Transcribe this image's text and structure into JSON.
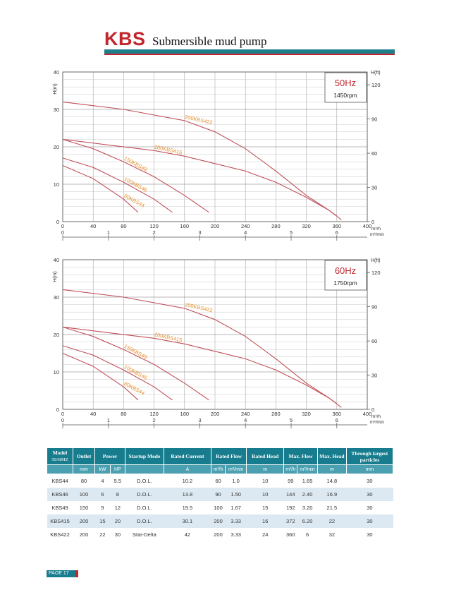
{
  "header": {
    "brand": "KBS",
    "subtitle": "Submersible mud pump"
  },
  "charts": [
    {
      "id": "50hz",
      "freq": "50Hz",
      "rpm": "1450rpm",
      "y_label": "H(m)",
      "y_ticks": [
        "40",
        "30",
        "20",
        "10",
        "0"
      ],
      "x_ticks": [
        "0",
        "40",
        "80",
        "120",
        "160",
        "200",
        "240",
        "280",
        "320",
        "360",
        "400"
      ],
      "rt_label": "H(ft)",
      "rt_ticks": [
        "120",
        "90",
        "60",
        "30",
        "0"
      ],
      "unit_m3h": "m³/h",
      "unit_m3min": "m³/min",
      "min_ticks": [
        "0",
        "1",
        "2",
        "3",
        "4",
        "5",
        "6"
      ],
      "curves": [
        {
          "name": "200KBS422",
          "x": [
            0,
            80,
            160,
            200,
            240,
            280,
            320,
            350,
            360
          ],
          "y": [
            32,
            30,
            27,
            24,
            19.5,
            13.5,
            7,
            3,
            1.5
          ]
        },
        {
          "name": "200KBS415",
          "x": [
            0,
            60,
            120,
            160,
            200,
            240,
            280,
            320,
            350,
            366
          ],
          "y": [
            22,
            20.5,
            19,
            17.5,
            15.5,
            13.5,
            10.5,
            6.5,
            3,
            0.5
          ]
        },
        {
          "name": "150KBS49",
          "x": [
            0,
            40,
            80,
            120,
            160,
            192
          ],
          "y": [
            22,
            19.5,
            16,
            12,
            7,
            2.5
          ]
        },
        {
          "name": "100KBS46",
          "x": [
            0,
            40,
            80,
            120,
            144
          ],
          "y": [
            17,
            14.5,
            10.5,
            6,
            2.5
          ]
        },
        {
          "name": "80KBS44",
          "x": [
            0,
            40,
            80,
            99
          ],
          "y": [
            15,
            11.5,
            6,
            2.5
          ]
        }
      ]
    },
    {
      "id": "60hz",
      "freq": "60Hz",
      "rpm": "1750rpm",
      "y_label": "H(m)",
      "y_ticks": [
        "40",
        "30",
        "20",
        "10",
        "0"
      ],
      "x_ticks": [
        "0",
        "40",
        "80",
        "120",
        "160",
        "200",
        "240",
        "280",
        "320",
        "360",
        "400"
      ],
      "rt_label": "H(ft)",
      "rt_ticks": [
        "120",
        "90",
        "60",
        "30",
        "0"
      ],
      "unit_m3h": "m³/h",
      "unit_m3min": "m³/min",
      "min_ticks": [
        "0",
        "1",
        "2",
        "3",
        "4",
        "5",
        "6"
      ],
      "curves": [
        {
          "name": "200KBS422",
          "x": [
            0,
            80,
            160,
            200,
            240,
            280,
            320,
            350,
            360
          ],
          "y": [
            32,
            30,
            27,
            24,
            19.5,
            13.5,
            7,
            3,
            1.5
          ]
        },
        {
          "name": "200KBS415",
          "x": [
            0,
            60,
            120,
            160,
            200,
            240,
            280,
            320,
            350,
            366
          ],
          "y": [
            22,
            20.5,
            19,
            17.5,
            15.5,
            13.5,
            10.5,
            6.5,
            3,
            0.5
          ]
        },
        {
          "name": "150KBS49",
          "x": [
            0,
            40,
            80,
            120,
            160,
            192
          ],
          "y": [
            22,
            19.5,
            16,
            12,
            7,
            2.5
          ]
        },
        {
          "name": "100KBS46",
          "x": [
            0,
            40,
            80,
            120,
            144
          ],
          "y": [
            17,
            14.5,
            10.5,
            6,
            2.5
          ]
        },
        {
          "name": "80KBS44",
          "x": [
            0,
            40,
            80,
            99
          ],
          "y": [
            15,
            11.5,
            6,
            2.5
          ]
        }
      ]
    }
  ],
  "table": {
    "headers": {
      "model": "Model",
      "model_sub": "50/60HZ",
      "outlet": "Outlet",
      "power": "Power",
      "startup": "Startup Mode",
      "rated_current": "Rated Current",
      "rated_flow": "Rated Flow",
      "rated_head": "Rated Head",
      "max_flow": "Max. Flow",
      "max_head": "Max. Head",
      "particles": "Through largest particles"
    },
    "units": {
      "outlet": "mm",
      "kw": "kW",
      "hp": "HP",
      "current": "A",
      "flow_h": "m³/h",
      "flow_min": "m³/min",
      "head": "m",
      "mflow_h": "m³/h",
      "mflow_min": "m³/min",
      "mhead": "m",
      "particles": "mm"
    },
    "rows": [
      {
        "model": "KBS44",
        "outlet": "80",
        "kw": "4",
        "hp": "5.5",
        "startup": "D.O.L.",
        "current": "10.2",
        "flow_h": "60",
        "flow_min": "1.0",
        "head": "10",
        "mflow_h": "99",
        "mflow_min": "1.65",
        "mhead": "14.8",
        "particles": "30"
      },
      {
        "model": "KBS46",
        "outlet": "100",
        "kw": "6",
        "hp": "8",
        "startup": "D.O.L.",
        "current": "13.8",
        "flow_h": "90",
        "flow_min": "1.50",
        "head": "10",
        "mflow_h": "144",
        "mflow_min": "2.40",
        "mhead": "16.9",
        "particles": "30"
      },
      {
        "model": "KBS49",
        "outlet": "150",
        "kw": "9",
        "hp": "12",
        "startup": "D.O.L.",
        "current": "19.5",
        "flow_h": "100",
        "flow_min": "1.67",
        "head": "15",
        "mflow_h": "192",
        "mflow_min": "3.20",
        "mhead": "21.5",
        "particles": "30"
      },
      {
        "model": "KBS415",
        "outlet": "200",
        "kw": "15",
        "hp": "20",
        "startup": "D.O.L.",
        "current": "30.1",
        "flow_h": "200",
        "flow_min": "3.33",
        "head": "16",
        "mflow_h": "372",
        "mflow_min": "6.20",
        "mhead": "22",
        "particles": "30"
      },
      {
        "model": "KBS422",
        "outlet": "200",
        "kw": "22",
        "hp": "30",
        "startup": "Star-Delta",
        "current": "42",
        "flow_h": "200",
        "flow_min": "3.33",
        "head": "24",
        "mflow_h": "360",
        "mflow_min": "6",
        "mhead": "32",
        "particles": "30"
      }
    ]
  },
  "footer": {
    "page": "PAGE 17"
  },
  "chart_data": [
    {
      "type": "line",
      "title": "50Hz 1450rpm",
      "xlabel": "m³/h",
      "ylabel": "H(m)",
      "xlim": [
        0,
        400
      ],
      "ylim": [
        0,
        40
      ],
      "series": [
        {
          "name": "200KBS422",
          "x": [
            0,
            80,
            160,
            200,
            240,
            280,
            320,
            350,
            360
          ],
          "y": [
            32,
            30,
            27,
            24,
            19.5,
            13.5,
            7,
            3,
            1.5
          ]
        },
        {
          "name": "200KBS415",
          "x": [
            0,
            60,
            120,
            160,
            200,
            240,
            280,
            320,
            350,
            366
          ],
          "y": [
            22,
            20.5,
            19,
            17.5,
            15.5,
            13.5,
            10.5,
            6.5,
            3,
            0.5
          ]
        },
        {
          "name": "150KBS49",
          "x": [
            0,
            40,
            80,
            120,
            160,
            192
          ],
          "y": [
            22,
            19.5,
            16,
            12,
            7,
            2.5
          ]
        },
        {
          "name": "100KBS46",
          "x": [
            0,
            40,
            80,
            120,
            144
          ],
          "y": [
            17,
            14.5,
            10.5,
            6,
            2.5
          ]
        },
        {
          "name": "80KBS44",
          "x": [
            0,
            40,
            80,
            99
          ],
          "y": [
            15,
            11.5,
            6,
            2.5
          ]
        }
      ]
    },
    {
      "type": "line",
      "title": "60Hz 1750rpm",
      "xlabel": "m³/h",
      "ylabel": "H(m)",
      "xlim": [
        0,
        400
      ],
      "ylim": [
        0,
        40
      ],
      "series": [
        {
          "name": "200KBS422",
          "x": [
            0,
            80,
            160,
            200,
            240,
            280,
            320,
            350,
            360
          ],
          "y": [
            32,
            30,
            27,
            24,
            19.5,
            13.5,
            7,
            3,
            1.5
          ]
        },
        {
          "name": "200KBS415",
          "x": [
            0,
            60,
            120,
            160,
            200,
            240,
            280,
            320,
            350,
            366
          ],
          "y": [
            22,
            20.5,
            19,
            17.5,
            15.5,
            13.5,
            10.5,
            6.5,
            3,
            0.5
          ]
        },
        {
          "name": "150KBS49",
          "x": [
            0,
            40,
            80,
            120,
            160,
            192
          ],
          "y": [
            22,
            19.5,
            16,
            12,
            7,
            2.5
          ]
        },
        {
          "name": "100KBS46",
          "x": [
            0,
            40,
            80,
            120,
            144
          ],
          "y": [
            17,
            14.5,
            10.5,
            6,
            2.5
          ]
        },
        {
          "name": "80KBS44",
          "x": [
            0,
            40,
            80,
            99
          ],
          "y": [
            15,
            11.5,
            6,
            2.5
          ]
        }
      ]
    }
  ],
  "colors": {
    "teal": "#177c8d",
    "red": "#c1272d",
    "curve": "#c0505a",
    "curve_label": "#e8902a",
    "grid": "#999999"
  }
}
